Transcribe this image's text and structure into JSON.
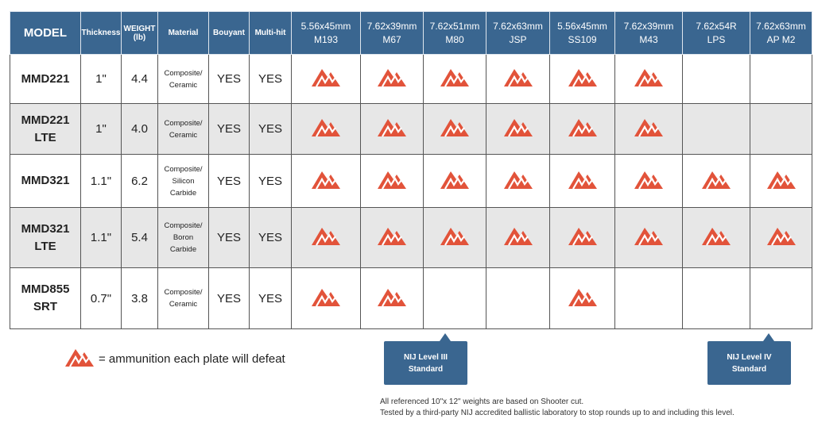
{
  "header": {
    "columns": [
      [
        "MODEL"
      ],
      [
        "Thickness"
      ],
      [
        "WEIGHT",
        "(lb)"
      ],
      [
        "Material"
      ],
      [
        "Bouyant"
      ],
      [
        "Multi-hit"
      ]
    ],
    "ammo": [
      [
        "5.56x45mm",
        "M193"
      ],
      [
        "7.62x39mm",
        "M67"
      ],
      [
        "7.62x51mm",
        "M80"
      ],
      [
        "7.62x63mm",
        "JSP"
      ],
      [
        "5.56x45mm",
        "SS109"
      ],
      [
        "7.62x39mm",
        "M43"
      ],
      [
        "7.62x54R",
        "LPS"
      ],
      [
        "7.62x63mm",
        "AP M2"
      ]
    ]
  },
  "rows": [
    {
      "model": [
        "MMD221"
      ],
      "thickness": "1\"",
      "weight": "4.4",
      "material": [
        "Composite/",
        "Ceramic"
      ],
      "bouyant": "YES",
      "multi_hit": "YES",
      "defeats": [
        true,
        true,
        true,
        true,
        true,
        true,
        false,
        false
      ]
    },
    {
      "model": [
        "MMD221 LTE"
      ],
      "thickness": "1\"",
      "weight": "4.0",
      "material": [
        "Composite/",
        "Ceramic"
      ],
      "bouyant": "YES",
      "multi_hit": "YES",
      "defeats": [
        true,
        true,
        true,
        true,
        true,
        true,
        false,
        false
      ]
    },
    {
      "model": [
        "MMD321"
      ],
      "thickness": "1.1\"",
      "weight": "6.2",
      "material": [
        "Composite/",
        "Silicon",
        "Carbide"
      ],
      "bouyant": "YES",
      "multi_hit": "YES",
      "defeats": [
        true,
        true,
        true,
        true,
        true,
        true,
        true,
        true
      ]
    },
    {
      "model": [
        "MMD321",
        "LTE"
      ],
      "thickness": "1.1\"",
      "weight": "5.4",
      "material": [
        "Composite/",
        "Boron",
        "Carbide"
      ],
      "bouyant": "YES",
      "multi_hit": "YES",
      "defeats": [
        true,
        true,
        true,
        true,
        true,
        true,
        true,
        true
      ]
    },
    {
      "model": [
        "MMD855",
        "SRT"
      ],
      "thickness": "0.7\"",
      "weight": "3.8",
      "material": [
        "Composite/",
        "Ceramic"
      ],
      "bouyant": "YES",
      "multi_hit": "YES",
      "defeats": [
        true,
        true,
        false,
        false,
        true,
        false,
        false,
        false
      ]
    }
  ],
  "legend": "= ammunition each plate will defeat",
  "callouts": [
    [
      "NIJ Level III",
      "Standard"
    ],
    [
      "NIJ Level IV",
      "Standard"
    ]
  ],
  "footnotes": [
    "All referenced 10\"x 12\" weights are based on Shooter cut.",
    "Tested by a third-party NIJ accredited ballistic laboratory to stop rounds up to and including this level."
  ]
}
